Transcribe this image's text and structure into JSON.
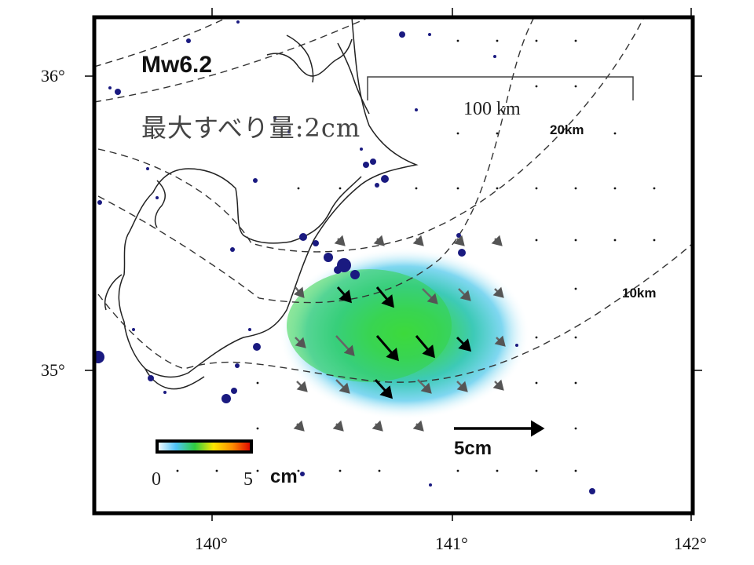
{
  "map": {
    "title": "Mw6.2",
    "max_slip_label": "最大すべり量:2cm",
    "scale_bar_label": "100 km",
    "depth_contour_labels": [
      "20km",
      "10km"
    ],
    "reference_vector_label": "5cm",
    "colorbar": {
      "min_label": "0",
      "max_label": "5",
      "unit": "cm"
    },
    "lon_labels": [
      "140°",
      "141°",
      "142°"
    ],
    "lat_labels": [
      "36°",
      "35°"
    ]
  }
}
